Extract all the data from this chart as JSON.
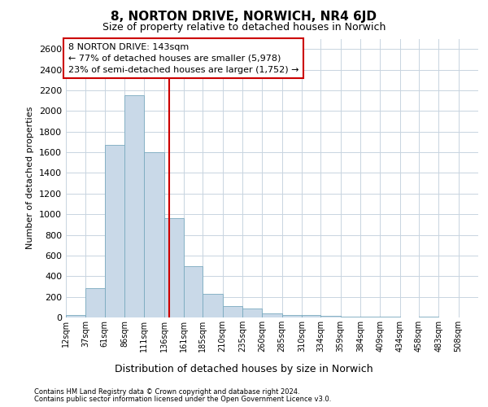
{
  "title": "8, NORTON DRIVE, NORWICH, NR4 6JD",
  "subtitle": "Size of property relative to detached houses in Norwich",
  "xlabel": "Distribution of detached houses by size in Norwich",
  "ylabel": "Number of detached properties",
  "footer1": "Contains HM Land Registry data © Crown copyright and database right 2024.",
  "footer2": "Contains public sector information licensed under the Open Government Licence v3.0.",
  "property_size": 143,
  "annotation_line1": "8 NORTON DRIVE: 143sqm",
  "annotation_line2": "← 77% of detached houses are smaller (5,978)",
  "annotation_line3": "23% of semi-detached houses are larger (1,752) →",
  "bar_color": "#c9d9e8",
  "bar_edge_color": "#7aaabf",
  "vline_color": "#cc0000",
  "annotation_box_edge": "#cc0000",
  "categories": [
    "12sqm",
    "37sqm",
    "61sqm",
    "86sqm",
    "111sqm",
    "136sqm",
    "161sqm",
    "185sqm",
    "210sqm",
    "235sqm",
    "260sqm",
    "285sqm",
    "310sqm",
    "334sqm",
    "359sqm",
    "384sqm",
    "409sqm",
    "434sqm",
    "458sqm",
    "483sqm",
    "508sqm"
  ],
  "bin_edges": [
    12,
    37,
    61,
    86,
    111,
    136,
    161,
    185,
    210,
    235,
    260,
    285,
    310,
    334,
    359,
    384,
    409,
    434,
    458,
    483,
    508,
    533
  ],
  "values": [
    25,
    280,
    1670,
    2150,
    1600,
    960,
    500,
    230,
    110,
    90,
    40,
    25,
    20,
    15,
    5,
    10,
    5,
    3,
    8,
    3,
    2
  ],
  "ylim": [
    0,
    2700
  ],
  "yticks": [
    0,
    200,
    400,
    600,
    800,
    1000,
    1200,
    1400,
    1600,
    1800,
    2000,
    2200,
    2400,
    2600
  ],
  "background_color": "#ffffff",
  "grid_color": "#c8d4e0",
  "title_fontsize": 11,
  "subtitle_fontsize": 9,
  "ylabel_fontsize": 8,
  "xlabel_fontsize": 9,
  "ytick_fontsize": 8,
  "xtick_fontsize": 7,
  "footer_fontsize": 6,
  "annot_fontsize": 8
}
